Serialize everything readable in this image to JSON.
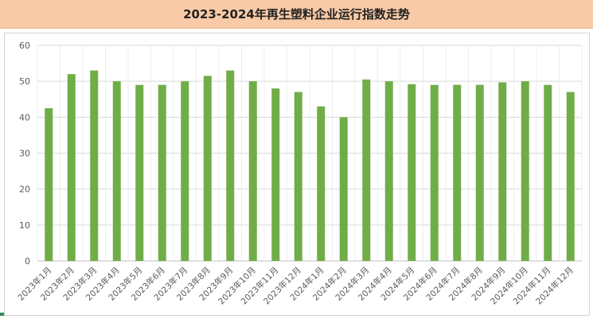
{
  "chart_data": {
    "type": "bar",
    "title": "2023-2024年再生塑料企业运行指数走势",
    "xlabel": "",
    "ylabel": "",
    "ylim": [
      0,
      60
    ],
    "yticks": [
      "0",
      "10",
      "20",
      "30",
      "40",
      "50",
      "60"
    ],
    "grid": true,
    "legend": "none",
    "bar_color": "#70ad47",
    "categories": [
      "2023年1月",
      "2023年2月",
      "2023年3月",
      "2023年4月",
      "2023年5月",
      "2023年6月",
      "2023年7月",
      "2023年8月",
      "2023年9月",
      "2023年10月",
      "2023年11月",
      "2023年12月",
      "2024年1月",
      "2024年2月",
      "2024年3月",
      "2024年4月",
      "2024年5月",
      "2024年6月",
      "2024年7月",
      "2024年8月",
      "2024年9月",
      "2024年10月",
      "2024年11月",
      "2024年12月"
    ],
    "values": [
      42.5,
      52,
      53,
      50,
      49,
      49,
      50,
      51.5,
      53,
      50,
      48,
      47,
      43,
      40,
      50.5,
      50,
      49.2,
      49,
      49,
      49,
      49.7,
      50,
      49,
      47
    ]
  }
}
